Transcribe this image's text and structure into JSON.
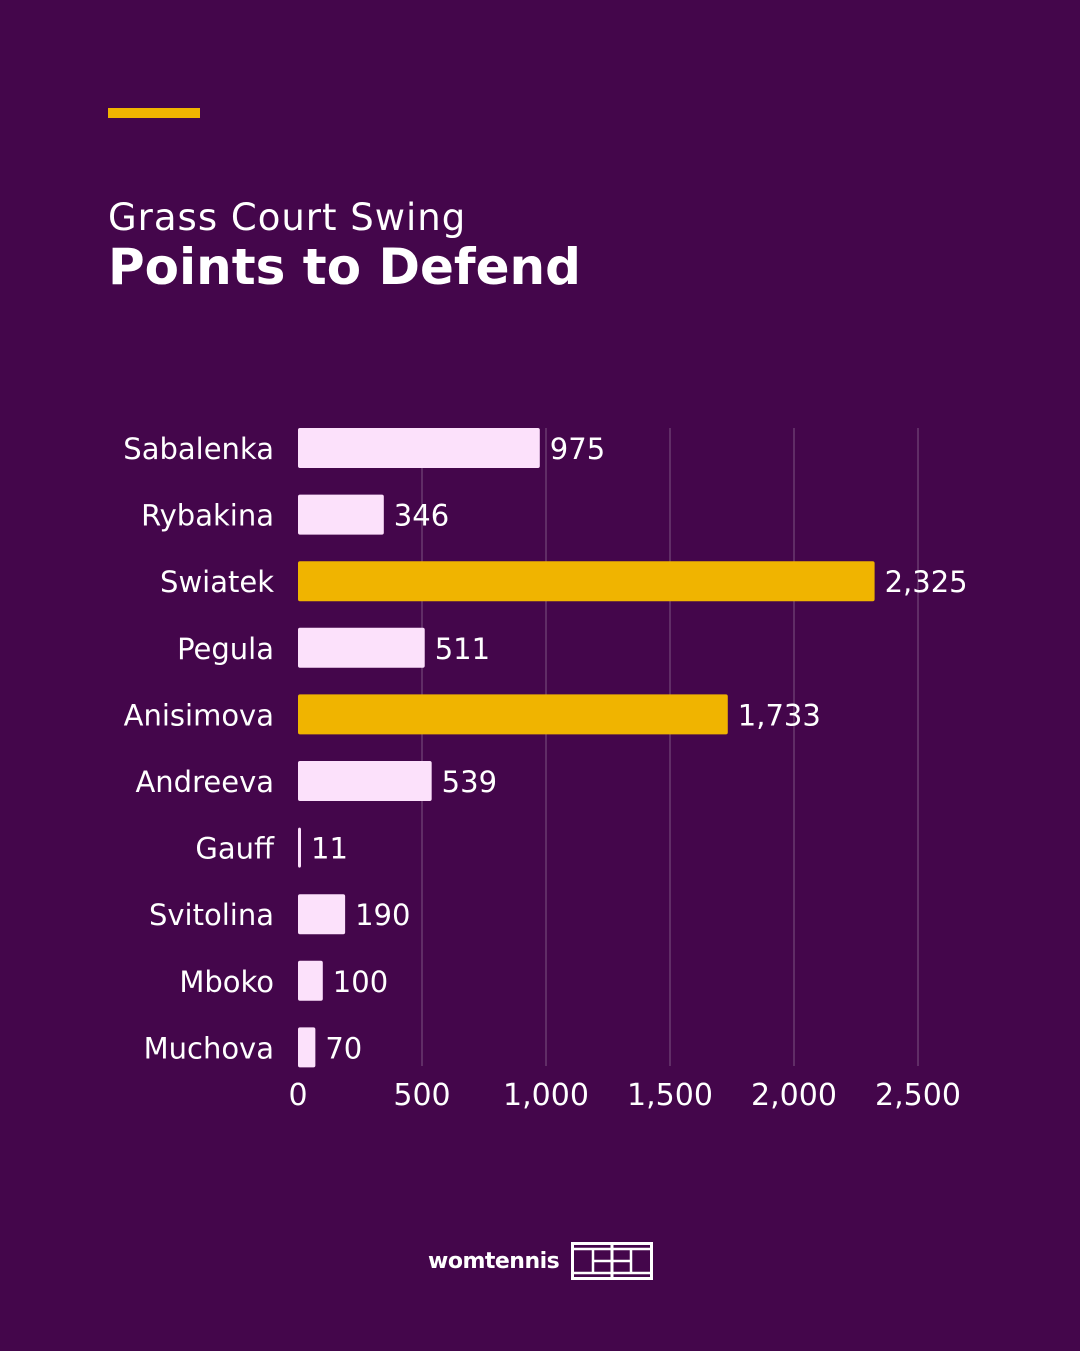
{
  "header": {
    "subtitle": "Grass Court Swing",
    "title": "Points to Defend"
  },
  "brand": {
    "name": "womtennis",
    "logo_icon": "tennis-court-icon"
  },
  "colors": {
    "background": "#44064b",
    "accent": "#f0b400",
    "bar_default": "#fce1fb",
    "bar_highlight": "#f0b400",
    "text": "#ffffff",
    "grid": "#6a3a70"
  },
  "chart_data": {
    "type": "bar",
    "orientation": "horizontal",
    "categories": [
      "Sabalenka",
      "Rybakina",
      "Swiatek",
      "Pegula",
      "Anisimova",
      "Andreeva",
      "Gauff",
      "Svitolina",
      "Mboko",
      "Muchova"
    ],
    "values": [
      975,
      346,
      2325,
      511,
      1733,
      539,
      11,
      190,
      100,
      70
    ],
    "value_labels": [
      "975",
      "346",
      "2,325",
      "511",
      "1,733",
      "539",
      "11",
      "190",
      "100",
      "70"
    ],
    "highlighted": [
      "Swiatek",
      "Anisimova"
    ],
    "xlim": [
      0,
      2500
    ],
    "xticks": [
      0,
      500,
      1000,
      1500,
      2000,
      2500
    ],
    "xtick_labels": [
      "0",
      "500",
      "1,000",
      "1,500",
      "2,000",
      "2,500"
    ],
    "grid": true,
    "title": "Points to Defend",
    "xlabel": "",
    "ylabel": ""
  }
}
